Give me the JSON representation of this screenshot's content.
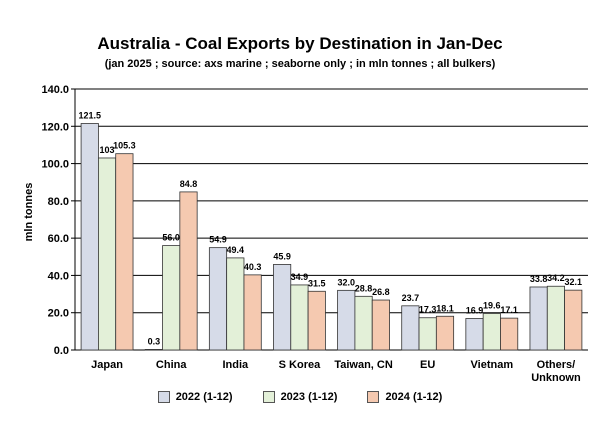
{
  "colors": {
    "s2022": "#d6dbe8",
    "s2023": "#e3f0d8",
    "s2024": "#f5c9b0",
    "border": "#333333",
    "grid": "#000000"
  },
  "chart_data": {
    "type": "bar",
    "title": "Australia - Coal Exports by Destination in Jan-Dec",
    "subtitle": "(jan 2025 ; source: axs marine ; seaborne only ; in mln tonnes ; all bulkers)",
    "ylabel": "mln tonnes",
    "xlabel": "",
    "ylim": [
      0,
      140
    ],
    "yticks": [
      "0.0",
      "20.0",
      "40.0",
      "60.0",
      "80.0",
      "100.0",
      "120.0",
      "140.0"
    ],
    "grid": true,
    "legend_position": "bottom",
    "categories": [
      "Japan",
      "China",
      "India",
      "S Korea",
      "Taiwan, CN",
      "EU",
      "Vietnam",
      "Others/\nUnknown"
    ],
    "series": [
      {
        "name": "2022 (1-12)",
        "values": [
          121.5,
          0.3,
          54.9,
          45.9,
          32.0,
          23.7,
          16.9,
          33.8
        ],
        "labels": [
          "121.5",
          "0.3",
          "54.9",
          "45.9",
          "32.0",
          "23.7",
          "16.9",
          "33.8"
        ]
      },
      {
        "name": "2023 (1-12)",
        "values": [
          103,
          56.0,
          49.4,
          34.9,
          28.8,
          17.3,
          19.6,
          34.2
        ],
        "labels": [
          "103",
          "56.0",
          "49.4",
          "34.9",
          "28.8",
          "17.3",
          "19.6",
          "34.2"
        ]
      },
      {
        "name": "2024 (1-12)",
        "values": [
          105.3,
          84.8,
          40.3,
          31.5,
          26.8,
          18.1,
          17.1,
          32.1
        ],
        "labels": [
          "105.3",
          "84.8",
          "40.3",
          "31.5",
          "26.8",
          "18.1",
          "17.1",
          "32.1"
        ]
      }
    ]
  }
}
